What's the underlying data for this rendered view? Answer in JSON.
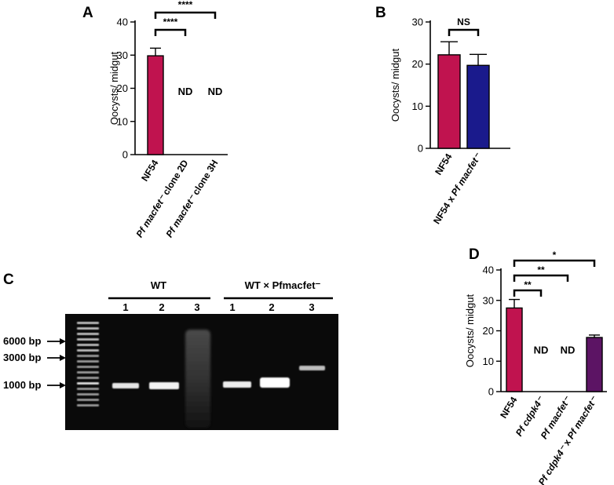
{
  "panels": {
    "A": "A",
    "B": "B",
    "C": "C",
    "D": "D"
  },
  "colors": {
    "nf54": "#c0134f",
    "cross": "#1a1a8c",
    "dcross": "#5c1464",
    "gel_bg": "#0a0a0a"
  },
  "chart_data": [
    {
      "panel": "A",
      "type": "bar",
      "ylabel": "Oocysts/ midgut",
      "ylim": [
        0,
        40
      ],
      "yticks": [
        0,
        10,
        20,
        30,
        40
      ],
      "categories": [
        "NF54",
        "Pf macfet⁻ clone 2D",
        "Pf macfet⁻ clone 3H"
      ],
      "values": [
        29.8,
        0,
        0
      ],
      "errors": [
        2.3,
        0,
        0
      ],
      "colors": [
        "#c0134f",
        "#c0134f",
        "#c0134f"
      ],
      "annotations": [
        "",
        "ND",
        "ND"
      ],
      "comparisons": [
        {
          "from": 0,
          "to": 1,
          "label": "****"
        },
        {
          "from": 0,
          "to": 2,
          "label": "****"
        }
      ]
    },
    {
      "panel": "B",
      "type": "bar",
      "ylabel": "Oocysts/ midgut",
      "ylim": [
        0,
        30
      ],
      "yticks": [
        0,
        10,
        20,
        30
      ],
      "categories": [
        "NF54",
        "NF54 x Pf macfet⁻"
      ],
      "values": [
        22.2,
        19.7
      ],
      "errors": [
        3.1,
        2.6
      ],
      "colors": [
        "#c0134f",
        "#1a1a8c"
      ],
      "annotations": [
        "",
        ""
      ],
      "comparisons": [
        {
          "from": 0,
          "to": 1,
          "label": "NS"
        }
      ]
    },
    {
      "panel": "D",
      "type": "bar",
      "ylabel": "Oocysts/ midgut",
      "ylim": [
        0,
        40
      ],
      "yticks": [
        0,
        10,
        20,
        30,
        40
      ],
      "categories": [
        "NF54",
        "Pf cdpk4⁻",
        "Pf macfet⁻",
        "Pf cdpk4⁻ x Pf macfet⁻"
      ],
      "values": [
        27.5,
        0,
        0,
        17.8
      ],
      "errors": [
        2.8,
        0,
        0,
        0.8
      ],
      "colors": [
        "#c0134f",
        "#c0134f",
        "#c0134f",
        "#5c1464"
      ],
      "annotations": [
        "",
        "ND",
        "ND",
        ""
      ],
      "comparisons": [
        {
          "from": 0,
          "to": 1,
          "label": "**"
        },
        {
          "from": 0,
          "to": 2,
          "label": "**"
        },
        {
          "from": 0,
          "to": 3,
          "label": "*"
        }
      ]
    }
  ],
  "gel": {
    "group_labels": [
      "WT",
      "WT × Pfmacfet⁻"
    ],
    "group1_lanes": [
      "1",
      "2",
      "3"
    ],
    "group2_lanes": [
      "1",
      "2",
      "3"
    ],
    "markers": [
      "6000 bp",
      "3000 bp",
      "1000 bp"
    ]
  }
}
